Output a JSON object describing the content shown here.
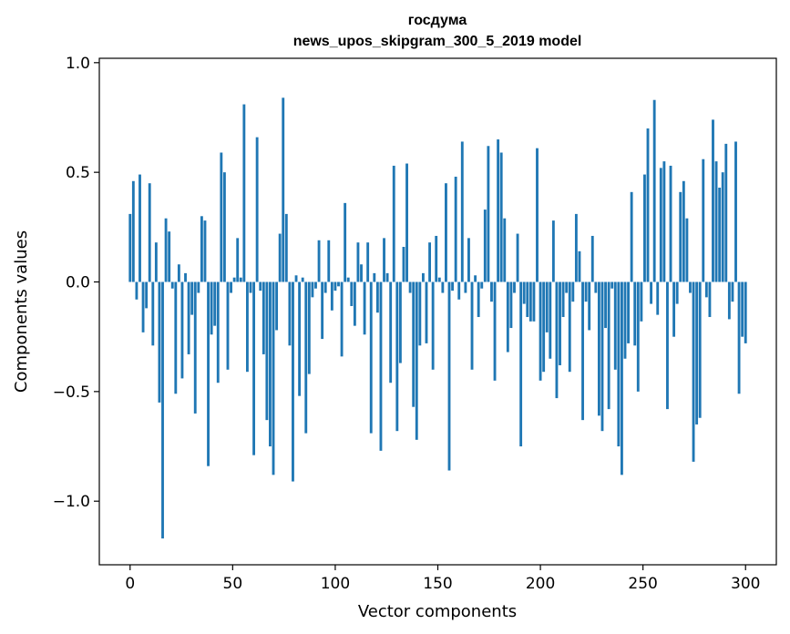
{
  "chart_data": {
    "type": "bar",
    "title": "госдума",
    "subtitle": "news_upos_skipgram_300_5_2019 model",
    "xlabel": "Vector components",
    "ylabel": "Components values",
    "xlim": [
      -15,
      315
    ],
    "ylim": [
      -1.29,
      1.02
    ],
    "xticks": [
      0,
      50,
      100,
      150,
      200,
      250,
      300
    ],
    "yticks": [
      -1.0,
      -0.5,
      0.0,
      0.5,
      1.0
    ],
    "xtick_labels": [
      "0",
      "50",
      "100",
      "150",
      "200",
      "250",
      "300"
    ],
    "ytick_labels": [
      "−1.0",
      "−0.5",
      "0.0",
      "0.5",
      "1.0"
    ],
    "grid": false,
    "bar_color": "#1f77b4",
    "values": [
      0.31,
      0.46,
      -0.08,
      0.49,
      -0.23,
      -0.12,
      0.45,
      -0.29,
      0.18,
      -0.55,
      -1.17,
      0.29,
      0.23,
      -0.03,
      -0.51,
      0.08,
      -0.44,
      0.04,
      -0.33,
      -0.15,
      -0.6,
      -0.05,
      0.3,
      0.28,
      -0.84,
      -0.24,
      -0.2,
      -0.46,
      0.59,
      0.5,
      -0.4,
      -0.05,
      0.02,
      0.2,
      0.02,
      0.81,
      -0.41,
      -0.05,
      -0.79,
      0.66,
      -0.04,
      -0.33,
      -0.63,
      -0.75,
      -0.88,
      -0.22,
      0.22,
      0.84,
      0.31,
      -0.29,
      -0.91,
      0.03,
      -0.52,
      0.02,
      -0.69,
      -0.42,
      -0.07,
      -0.03,
      0.19,
      -0.26,
      -0.05,
      0.19,
      -0.13,
      -0.04,
      -0.02,
      -0.34,
      0.36,
      0.02,
      -0.11,
      -0.2,
      0.18,
      0.08,
      -0.24,
      0.18,
      -0.69,
      0.04,
      -0.14,
      -0.77,
      0.2,
      0.04,
      -0.46,
      0.53,
      -0.68,
      -0.37,
      0.16,
      0.54,
      -0.05,
      -0.57,
      -0.72,
      -0.29,
      0.04,
      -0.28,
      0.18,
      -0.4,
      0.21,
      0.02,
      -0.05,
      0.45,
      -0.86,
      -0.04,
      0.48,
      -0.08,
      0.64,
      -0.05,
      0.2,
      -0.4,
      0.03,
      -0.16,
      -0.03,
      0.33,
      0.62,
      -0.09,
      -0.45,
      0.65,
      0.59,
      0.29,
      -0.32,
      -0.21,
      -0.05,
      0.22,
      -0.75,
      -0.1,
      -0.16,
      -0.18,
      -0.18,
      0.61,
      -0.45,
      -0.41,
      -0.23,
      -0.35,
      0.28,
      -0.53,
      -0.38,
      -0.16,
      -0.05,
      -0.41,
      -0.09,
      0.31,
      0.14,
      -0.63,
      -0.09,
      -0.22,
      0.21,
      -0.05,
      -0.61,
      -0.68,
      -0.21,
      -0.58,
      -0.03,
      -0.4,
      -0.75,
      -0.88,
      -0.35,
      -0.28,
      0.41,
      -0.29,
      -0.5,
      -0.18,
      0.49,
      0.7,
      -0.1,
      0.83,
      -0.15,
      0.52,
      0.55,
      -0.58,
      0.53,
      -0.25,
      -0.1,
      0.41,
      0.46,
      0.29,
      -0.05,
      -0.82,
      -0.65,
      -0.62,
      0.56,
      -0.07,
      -0.16,
      0.74,
      0.55,
      0.43,
      0.5,
      0.63,
      -0.17,
      -0.09,
      0.64,
      -0.51,
      -0.25,
      -0.28
    ]
  }
}
